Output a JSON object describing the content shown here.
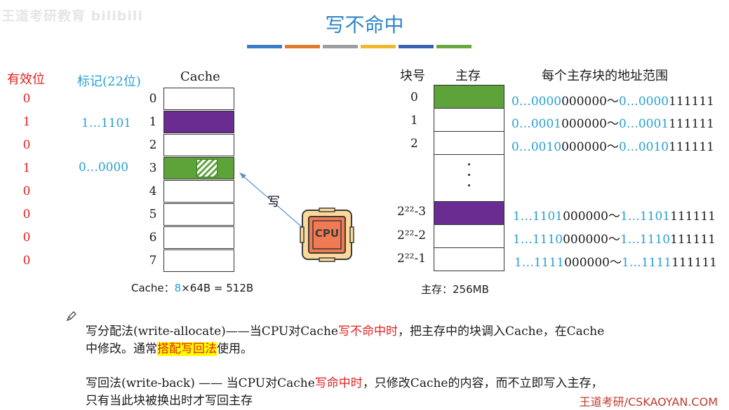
{
  "watermark": "王道考研教育 bilibili",
  "title": "写不命中",
  "title_bar_colors": [
    "#3d7cc9",
    "#e07b2c",
    "#9e9e9e",
    "#f1b82c",
    "#3c62b4",
    "#69a840"
  ],
  "valid_header": "有效位",
  "tag_header": "标记(22位)",
  "cache_header": "Cache",
  "valid_bits": [
    "0",
    "1",
    "0",
    "1",
    "0",
    "0",
    "0",
    "0"
  ],
  "cache_lines": [
    "0",
    "1",
    "2",
    "3",
    "4",
    "5",
    "6",
    "7"
  ],
  "tags": {
    "line1": "1…1101",
    "line3": "0…0000"
  },
  "cache_caption": {
    "prefix": "Cache：",
    "count": "8",
    "suffix": "×64B = 512B"
  },
  "write_label": "写",
  "cpu_label": "CPU",
  "mem_headers": {
    "block": "块号",
    "mem": "主存",
    "range": "每个主存块的地址范围"
  },
  "mem_rows": [
    {
      "num": "0",
      "blue": "0…0000",
      "black": "000000",
      "sep": "～",
      "blue2": "0…0000",
      "black2": "111111"
    },
    {
      "num": "1",
      "blue": "0…0001",
      "black": "000000",
      "sep": "～",
      "blue2": "0…0001",
      "black2": "111111"
    },
    {
      "num": "2",
      "blue": "0…0010",
      "black": "000000",
      "sep": "～",
      "blue2": "0…0010",
      "black2": "111111"
    },
    {
      "num": "2²²-3",
      "blue": "1…1101",
      "black": "000000",
      "sep": "～",
      "blue2": "1…1101",
      "black2": "111111"
    },
    {
      "num": "2²²-2",
      "blue": "1…1110",
      "black": "000000",
      "sep": "～",
      "blue2": "1…1110",
      "black2": "111111"
    },
    {
      "num": "2²²-1",
      "blue": "1…1111",
      "black": "000000",
      "sep": "～",
      "blue2": "1…1111",
      "black2": "111111"
    }
  ],
  "mem_caption": "主存：256MB",
  "colors": {
    "purple": "#6a2c91",
    "green": "#5ea23a",
    "red": "#e41e1e",
    "blue": "#27a0d3",
    "cpu_orange": "#f07b52"
  },
  "para1": {
    "a": "写分配法(write-allocate)——当CPU对Cache",
    "b": "写不命中时",
    "c": "，把主存中的块调入Cache，在Cache",
    "d": "中修改。通常",
    "e": "搭配写回法",
    "f": "使用。"
  },
  "para2": {
    "a": "写回法(write-back) —— 当CPU对Cache",
    "b": "写命中时",
    "c": "，只修改Cache的内容，而不立即写入主存，",
    "d": "只有当此块被换出时才写回主存"
  },
  "footer": "王道考研/CSKAOYAN.COM"
}
